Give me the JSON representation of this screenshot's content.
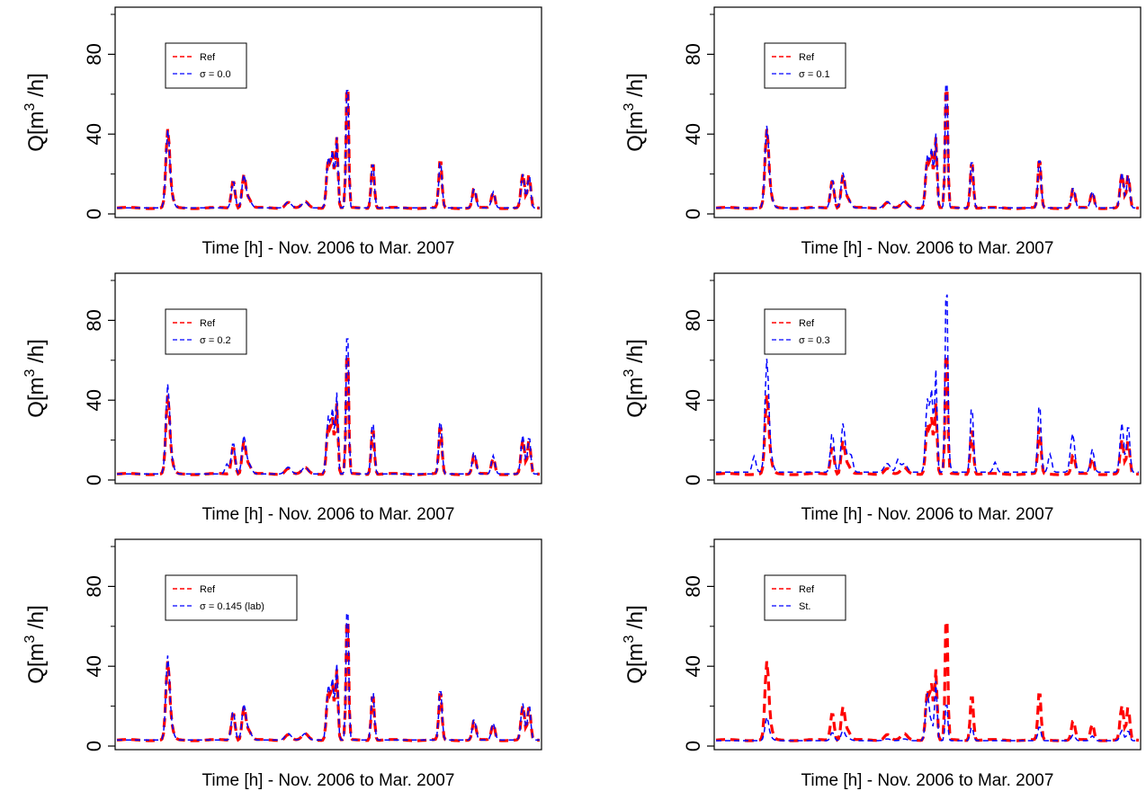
{
  "colors": {
    "ref": "#ff0000",
    "sim": "#0000ff",
    "frame": "#000000"
  },
  "chart_data": [
    {
      "type": "line",
      "xlabel": "Time [h] - Nov. 2006 to Mar. 2007",
      "ylabel_base": "Q[m",
      "ylabel_sup": "3",
      "ylabel_tail": " /h]",
      "ylim": [
        0,
        100
      ],
      "yticks": [
        0,
        40,
        80
      ],
      "legend_position": "top-left",
      "legend": [
        "Ref",
        "σ = 0.0"
      ],
      "ref_scale": 1.0,
      "sim_scale": 1.0,
      "sim_base": 1.0,
      "sim_extra": []
    },
    {
      "type": "line",
      "xlabel": "Time [h] - Nov. 2006 to Mar. 2007",
      "ylabel_base": "Q[m",
      "ylabel_sup": "3",
      "ylabel_tail": " /h]",
      "ylim": [
        0,
        100
      ],
      "yticks": [
        0,
        40,
        80
      ],
      "legend_position": "top-left",
      "legend": [
        "Ref",
        "σ = 0.1"
      ],
      "ref_scale": 1.0,
      "sim_scale": 1.05,
      "sim_base": 1.0,
      "sim_extra": []
    },
    {
      "type": "line",
      "xlabel": "Time [h] - Nov. 2006 to Mar. 2007",
      "ylabel_base": "Q[m",
      "ylabel_sup": "3",
      "ylabel_tail": " /h]",
      "ylim": [
        0,
        100
      ],
      "yticks": [
        0,
        40,
        80
      ],
      "legend_position": "top-left",
      "legend": [
        "Ref",
        "σ = 0.2"
      ],
      "ref_scale": 1.0,
      "sim_scale": 1.15,
      "sim_base": 1.0,
      "sim_extra": [
        [
          0.26,
          5
        ]
      ]
    },
    {
      "type": "line",
      "xlabel": "Time [h] - Nov. 2006 to Mar. 2007",
      "ylabel_base": "Q[m",
      "ylabel_sup": "3",
      "ylabel_tail": " /h]",
      "ylim": [
        0,
        100
      ],
      "yticks": [
        0,
        40,
        80
      ],
      "legend_position": "top-left",
      "legend": [
        "Ref",
        "σ = 0.3"
      ],
      "ref_scale": 1.0,
      "sim_scale": 1.45,
      "sim_base": 1.3,
      "sim_extra": [
        [
          0.09,
          8
        ],
        [
          0.32,
          6
        ],
        [
          0.43,
          6
        ],
        [
          0.55,
          5
        ],
        [
          0.66,
          5
        ],
        [
          0.79,
          9
        ],
        [
          0.84,
          8
        ]
      ]
    },
    {
      "type": "line",
      "xlabel": "Time [h] - Nov. 2006 to Mar. 2007",
      "ylabel_base": "Q[m",
      "ylabel_sup": "3",
      "ylabel_tail": " /h]",
      "ylim": [
        0,
        100
      ],
      "yticks": [
        0,
        40,
        80
      ],
      "legend_position": "top-left",
      "legend": [
        "Ref",
        "σ = 0.145 (lab)"
      ],
      "ref_scale": 1.0,
      "sim_scale": 1.08,
      "sim_base": 1.0,
      "sim_extra": []
    },
    {
      "type": "line",
      "xlabel": "Time [h] - Nov. 2006 to Mar. 2007",
      "ylabel_base": "Q[m",
      "ylabel_sup": "3",
      "ylabel_tail": " /h]",
      "ylim": [
        0,
        100
      ],
      "yticks": [
        0,
        40,
        80
      ],
      "legend_position": "top-left",
      "legend": [
        "Ref",
        "St."
      ],
      "ref_scale": 1.0,
      "sim_scale": 0.3,
      "sim_base": 0.9,
      "sim_extra": [],
      "sim_overrides": [
        [
          0.5,
          0.95
        ],
        [
          0.52,
          0.85
        ]
      ]
    }
  ],
  "reference_series": {
    "baseline": 3,
    "peaks": [
      [
        0.12,
        33,
        0.006
      ],
      [
        0.125,
        8,
        0.01
      ],
      [
        0.275,
        14,
        0.006
      ],
      [
        0.3,
        15,
        0.006
      ],
      [
        0.31,
        5,
        0.01
      ],
      [
        0.405,
        3,
        0.01
      ],
      [
        0.445,
        3,
        0.01
      ],
      [
        0.5,
        25,
        0.006
      ],
      [
        0.51,
        27,
        0.005
      ],
      [
        0.52,
        35,
        0.004
      ],
      [
        0.545,
        70,
        0.004
      ],
      [
        0.605,
        24,
        0.005
      ],
      [
        0.765,
        25,
        0.005
      ],
      [
        0.845,
        10,
        0.006
      ],
      [
        0.89,
        8,
        0.006
      ],
      [
        0.96,
        17,
        0.006
      ],
      [
        0.975,
        17,
        0.005
      ]
    ]
  }
}
